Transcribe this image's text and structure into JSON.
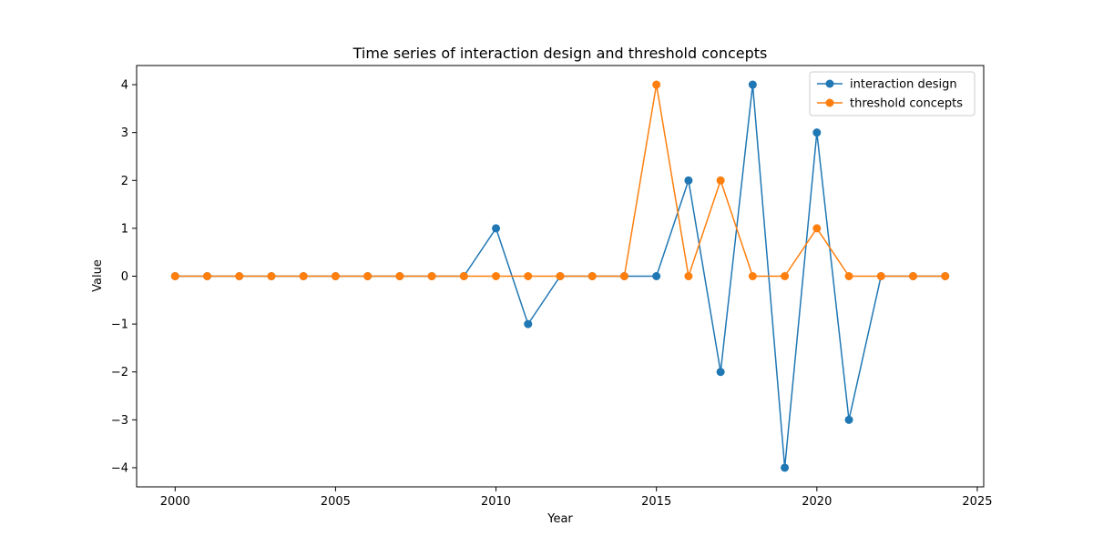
{
  "chart_data": {
    "type": "line",
    "title": "Time series of interaction design and threshold concepts",
    "xlabel": "Year",
    "ylabel": "Value",
    "x": [
      2000,
      2001,
      2002,
      2003,
      2004,
      2005,
      2006,
      2007,
      2008,
      2009,
      2010,
      2011,
      2012,
      2013,
      2014,
      2015,
      2016,
      2017,
      2018,
      2019,
      2020,
      2021,
      2022,
      2023,
      2024
    ],
    "series": [
      {
        "name": "interaction design",
        "color": "#1f77b4",
        "values": [
          0,
          0,
          0,
          0,
          0,
          0,
          0,
          0,
          0,
          0,
          1,
          -1,
          0,
          0,
          0,
          0,
          2,
          -2,
          4,
          -4,
          3,
          -3,
          0,
          0,
          0
        ]
      },
      {
        "name": "threshold concepts",
        "color": "#ff7f0e",
        "values": [
          0,
          0,
          0,
          0,
          0,
          0,
          0,
          0,
          0,
          0,
          0,
          0,
          0,
          0,
          0,
          4,
          0,
          2,
          0,
          0,
          1,
          0,
          0,
          0,
          0
        ]
      }
    ],
    "xlim": [
      1998.8,
      2025.2
    ],
    "ylim": [
      -4.4,
      4.4
    ],
    "xticks": [
      2000,
      2005,
      2010,
      2015,
      2020,
      2025
    ],
    "yticks": [
      -4,
      -3,
      -2,
      -1,
      0,
      1,
      2,
      3,
      4
    ],
    "ytick_labels": [
      "−4",
      "−3",
      "−2",
      "−1",
      "0",
      "1",
      "2",
      "3",
      "4"
    ],
    "grid": false,
    "legend_position": "top-right"
  }
}
